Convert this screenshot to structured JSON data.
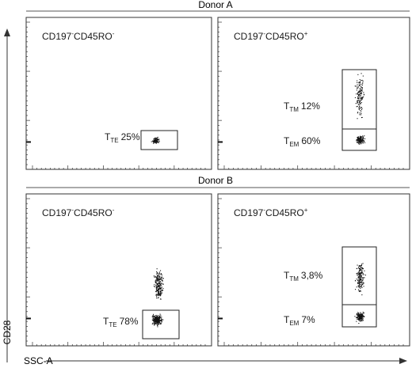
{
  "figure": {
    "axis_y_label": "CD28",
    "axis_x_label": "SSC-A",
    "colors": {
      "ink": "#1a1a1a",
      "dots": "#111111",
      "frame": "#333333"
    }
  },
  "donors": [
    {
      "title": "Donor A",
      "panels": [
        {
          "marker": {
            "base1": "CD197",
            "sup1": "-",
            "base2": "CD45RO",
            "sup2": "-"
          },
          "gates": [
            {
              "main": "T",
              "sub": "TE",
              "pct": "25%"
            }
          ]
        },
        {
          "marker": {
            "base1": "CD197",
            "sup1": "-",
            "base2": "CD45RO",
            "sup2": "+"
          },
          "gates": [
            {
              "main": "T",
              "sub": "TM",
              "pct": "12%"
            },
            {
              "main": "T",
              "sub": "EM",
              "pct": "60%"
            }
          ]
        }
      ]
    },
    {
      "title": "Donor B",
      "panels": [
        {
          "marker": {
            "base1": "CD197",
            "sup1": "-",
            "base2": "CD45RO",
            "sup2": "-"
          },
          "gates": [
            {
              "main": "T",
              "sub": "TE",
              "pct": "78%"
            }
          ]
        },
        {
          "marker": {
            "base1": "CD197",
            "sup1": "-",
            "base2": "CD45RO",
            "sup2": "+"
          },
          "gates": [
            {
              "main": "T",
              "sub": "TM",
              "pct": "3,8%"
            },
            {
              "main": "T",
              "sub": "EM",
              "pct": "7%"
            }
          ]
        }
      ]
    }
  ]
}
